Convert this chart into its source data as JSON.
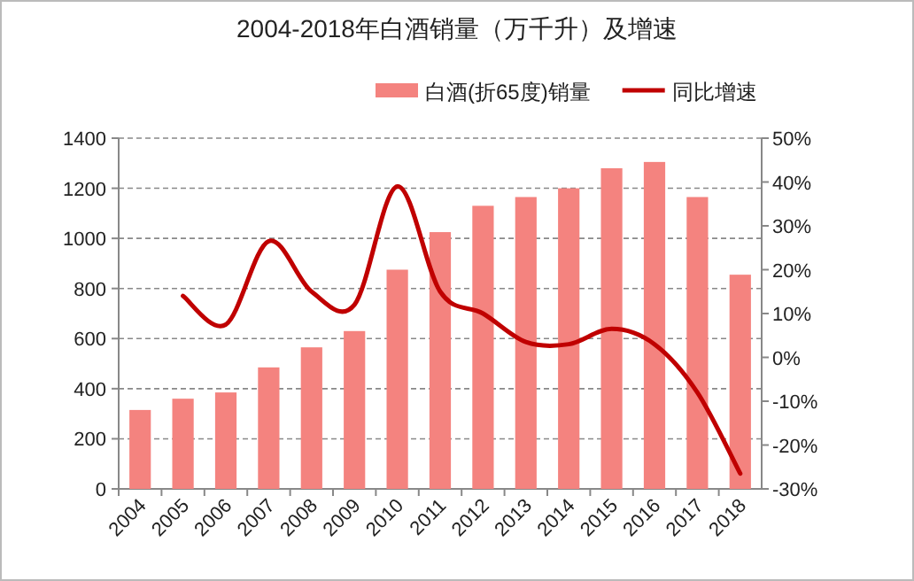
{
  "chart_data": {
    "type": "bar",
    "title": "2004-2018年白酒销量（万千升）及增速",
    "categories": [
      "2004",
      "2005",
      "2006",
      "2007",
      "2008",
      "2009",
      "2010",
      "2011",
      "2012",
      "2013",
      "2014",
      "2015",
      "2016",
      "2017",
      "2018"
    ],
    "series": [
      {
        "name": "白酒(折65度)销量",
        "color": "#f4837f",
        "values": [
          315,
          360,
          385,
          485,
          565,
          630,
          875,
          1025,
          1130,
          1165,
          1200,
          1280,
          1305,
          1165,
          855
        ]
      },
      {
        "name": "同比增速",
        "type": "line",
        "axis": "y2",
        "color": "#c00000",
        "values": [
          null,
          14,
          7.5,
          26.5,
          15,
          12,
          39,
          15,
          10,
          3.5,
          3,
          6.5,
          3,
          -8,
          -26.5
        ]
      }
    ],
    "ylim": [
      0,
      1400
    ],
    "yticks": [
      0,
      200,
      400,
      600,
      800,
      1000,
      1200,
      1400
    ],
    "y2lim": [
      -30,
      50
    ],
    "y2ticks": [
      {
        "value": -30,
        "label": "-30%"
      },
      {
        "value": -20,
        "label": "-20%"
      },
      {
        "value": -10,
        "label": "-10%"
      },
      {
        "value": 0,
        "label": "0%"
      },
      {
        "value": 10,
        "label": "10%"
      },
      {
        "value": 20,
        "label": "20%"
      },
      {
        "value": 30,
        "label": "30%"
      },
      {
        "value": 40,
        "label": "40%"
      },
      {
        "value": 50,
        "label": "50%"
      }
    ],
    "grid": "y",
    "legend": "top"
  }
}
